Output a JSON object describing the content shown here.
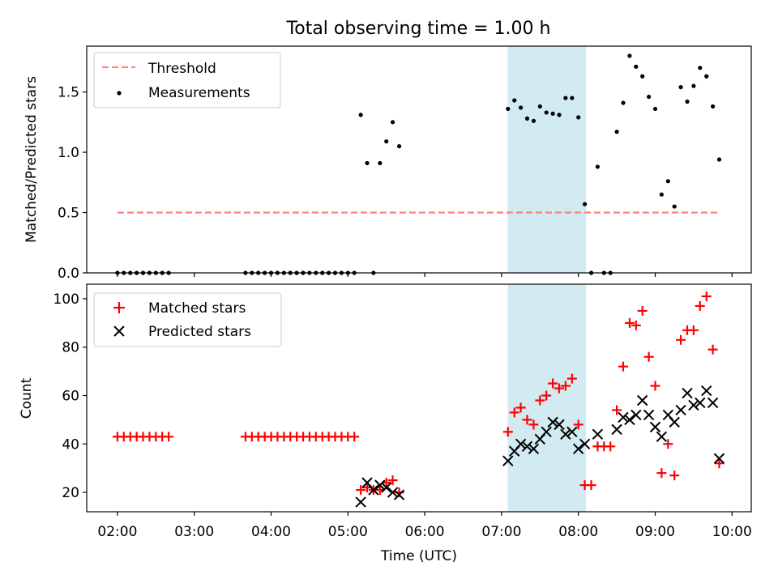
{
  "figure": {
    "title": "Total observing time = 1.00 h"
  },
  "chart_data": [
    {
      "type": "scatter",
      "ylabel": "Matched/Predicted stars",
      "ylim": [
        0,
        1.88
      ],
      "xlim": [
        1.6,
        10.25
      ],
      "yticks": [
        0,
        0.5,
        1,
        1.5
      ],
      "ytick_labels": [
        "0.0",
        "0.5",
        "1.0",
        "1.5"
      ],
      "highlight_span": [
        7.08,
        8.1
      ],
      "highlight_color": "#add8e6",
      "legend_position": "upper-left",
      "threshold": {
        "name": "Threshold",
        "value": 0.5,
        "x_range": [
          2.0,
          9.83
        ],
        "color": "#ff7f7f",
        "style": "dashed"
      },
      "series": [
        {
          "name": "Measurements",
          "color": "#000000",
          "marker": "dot",
          "x": [
            2.0,
            2.083,
            2.167,
            2.25,
            2.333,
            2.417,
            2.5,
            2.583,
            2.667,
            3.667,
            3.75,
            3.833,
            3.917,
            4.0,
            4.083,
            4.167,
            4.25,
            4.333,
            4.417,
            4.5,
            4.583,
            4.667,
            4.75,
            4.833,
            4.917,
            5.0,
            5.083,
            5.167,
            5.25,
            5.333,
            5.417,
            5.5,
            5.583,
            5.667,
            7.083,
            7.167,
            7.25,
            7.333,
            7.417,
            7.5,
            7.583,
            7.667,
            7.75,
            7.833,
            7.917,
            8.0,
            8.083,
            8.167,
            8.25,
            8.333,
            8.417,
            8.5,
            8.583,
            8.667,
            8.75,
            8.833,
            8.917,
            9.0,
            9.083,
            9.167,
            9.25,
            9.333,
            9.417,
            9.5,
            9.583,
            9.667,
            9.75,
            9.833
          ],
          "y": [
            0,
            0,
            0,
            0,
            0,
            0,
            0,
            0,
            0,
            0,
            0,
            0,
            0,
            0,
            0,
            0,
            0,
            0,
            0,
            0,
            0,
            0,
            0,
            0,
            0,
            0,
            0,
            1.31,
            0.91,
            0,
            0.91,
            1.09,
            1.25,
            1.05,
            1.36,
            1.43,
            1.37,
            1.28,
            1.26,
            1.38,
            1.33,
            1.32,
            1.31,
            1.45,
            1.45,
            1.29,
            0.57,
            0,
            0.88,
            0,
            0,
            1.17,
            1.41,
            1.8,
            1.71,
            1.63,
            1.46,
            1.36,
            0.65,
            0.76,
            0.55,
            1.54,
            1.42,
            1.55,
            1.7,
            1.63,
            1.38,
            0.94
          ]
        }
      ]
    },
    {
      "type": "scatter",
      "xlabel": "Time (UTC)",
      "ylabel": "Count",
      "ylim": [
        12,
        106
      ],
      "xlim": [
        1.6,
        10.25
      ],
      "yticks": [
        20,
        40,
        60,
        80,
        100
      ],
      "xticks": [
        2,
        3,
        4,
        5,
        6,
        7,
        8,
        9,
        10
      ],
      "xtick_labels": [
        "02:00",
        "03:00",
        "04:00",
        "05:00",
        "06:00",
        "07:00",
        "08:00",
        "09:00",
        "10:00"
      ],
      "highlight_span": [
        7.08,
        8.1
      ],
      "highlight_color": "#add8e6",
      "legend_position": "upper-left",
      "series": [
        {
          "name": "Matched stars",
          "color": "#ff0000",
          "marker": "plus",
          "x": [
            2.0,
            2.083,
            2.167,
            2.25,
            2.333,
            2.417,
            2.5,
            2.583,
            2.667,
            3.667,
            3.75,
            3.833,
            3.917,
            4.0,
            4.083,
            4.167,
            4.25,
            4.333,
            4.417,
            4.5,
            4.583,
            4.667,
            4.75,
            4.833,
            4.917,
            5.0,
            5.083,
            5.167,
            5.25,
            5.333,
            5.417,
            5.5,
            5.583,
            5.667,
            7.083,
            7.167,
            7.25,
            7.333,
            7.417,
            7.5,
            7.583,
            7.667,
            7.75,
            7.833,
            7.917,
            8.0,
            8.083,
            8.167,
            8.25,
            8.333,
            8.417,
            8.5,
            8.583,
            8.667,
            8.75,
            8.833,
            8.917,
            9.0,
            9.083,
            9.167,
            9.25,
            9.333,
            9.417,
            9.5,
            9.583,
            9.667,
            9.75,
            9.833
          ],
          "y": [
            43,
            43,
            43,
            43,
            43,
            43,
            43,
            43,
            43,
            43,
            43,
            43,
            43,
            43,
            43,
            43,
            43,
            43,
            43,
            43,
            43,
            43,
            43,
            43,
            43,
            43,
            43,
            21,
            22,
            21,
            21,
            24,
            25,
            20,
            45,
            53,
            55,
            50,
            48,
            58,
            60,
            65,
            63,
            64,
            67,
            48,
            23,
            23,
            39,
            39,
            39,
            54,
            72,
            90,
            89,
            95,
            76,
            64,
            28,
            40,
            27,
            83,
            87,
            87,
            97,
            101,
            79,
            32
          ]
        },
        {
          "name": "Predicted stars",
          "color": "#000000",
          "marker": "x",
          "x": [
            5.167,
            5.25,
            5.333,
            5.417,
            5.5,
            5.583,
            5.667,
            7.083,
            7.167,
            7.25,
            7.333,
            7.417,
            7.5,
            7.583,
            7.667,
            7.75,
            7.833,
            7.917,
            8.0,
            8.083,
            8.25,
            8.5,
            8.583,
            8.667,
            8.75,
            8.833,
            8.917,
            9.0,
            9.083,
            9.167,
            9.25,
            9.333,
            9.417,
            9.5,
            9.583,
            9.667,
            9.75,
            9.833
          ],
          "y": [
            16,
            24,
            21,
            23,
            22,
            20,
            19,
            33,
            37,
            40,
            39,
            38,
            42,
            45,
            49,
            48,
            44,
            45,
            38,
            40,
            44,
            46,
            51,
            50,
            52,
            58,
            52,
            47,
            43,
            52,
            49,
            54,
            61,
            56,
            57,
            62,
            57,
            34
          ]
        }
      ]
    }
  ]
}
